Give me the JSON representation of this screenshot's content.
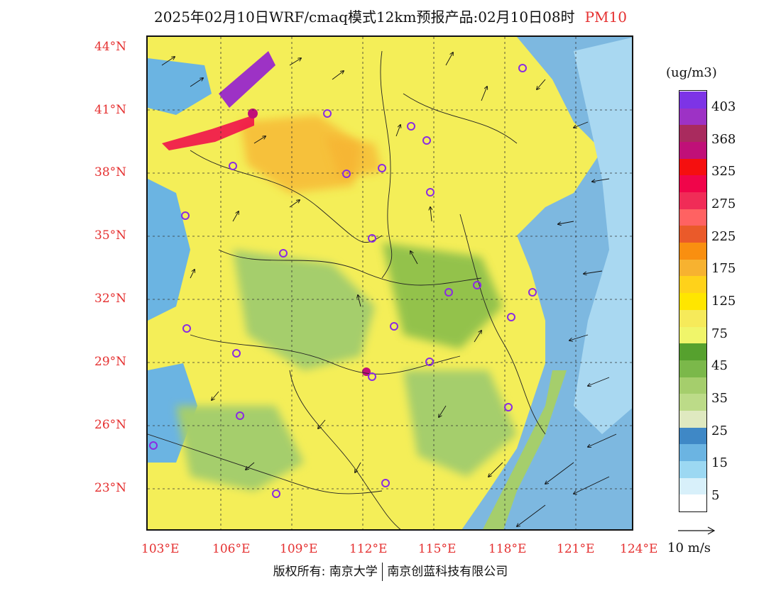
{
  "title": {
    "main": "2025年02月10日WRF/cmaq模式12km预报产品:02月10日08时",
    "species": "PM10"
  },
  "lat_labels": [
    "44°N",
    "41°N",
    "38°N",
    "35°N",
    "32°N",
    "29°N",
    "26°N",
    "23°N"
  ],
  "lon_labels": [
    "103°E",
    "106°E",
    "109°E",
    "112°E",
    "115°E",
    "118°E",
    "121°E",
    "124°E"
  ],
  "legend": {
    "unit": "(ug/m3)",
    "colors": [
      "#ffffff",
      "#d8f0fa",
      "#9cd8f2",
      "#6bb4e2",
      "#3f88c6",
      "#dfe9c0",
      "#bcdb88",
      "#a5ce6c",
      "#7bb84a",
      "#56a12e",
      "#f0f56a",
      "#f6ea5a",
      "#ffe600",
      "#ffd21a",
      "#f7b230",
      "#f98f10",
      "#ea5a2a",
      "#ff6262",
      "#f02c57",
      "#f0054a",
      "#f50f0f",
      "#c01078",
      "#a92b5e",
      "#9d32c5",
      "#7d34e6"
    ],
    "ticks": [
      "5",
      "15",
      "25",
      "35",
      "45",
      "75",
      "125",
      "175",
      "225",
      "275",
      "325",
      "368",
      "403"
    ]
  },
  "wind_ref_label": "10 m/s",
  "footer": {
    "copyright": "版权所有: 南京大学",
    "company": "南京创蓝科技有限公司"
  }
}
